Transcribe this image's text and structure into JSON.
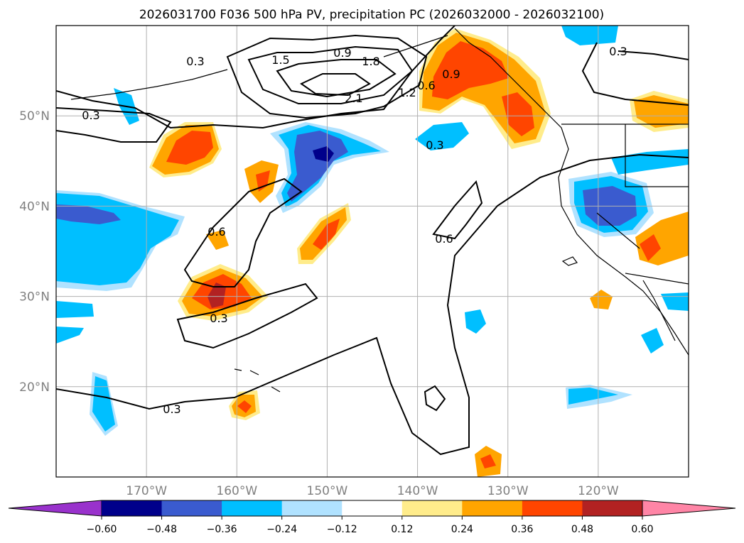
{
  "title": "2026031700 F036 500 hPa PV, precipitation PC (2026032000 - 2026032100)",
  "map": {
    "lon_range": [
      -180,
      -110
    ],
    "lat_range": [
      10,
      60
    ],
    "lat_ticks": [
      {
        "value": 20,
        "label": "20°N"
      },
      {
        "value": 30,
        "label": "30°N"
      },
      {
        "value": 40,
        "label": "40°N"
      },
      {
        "value": 50,
        "label": "50°N"
      }
    ],
    "lon_ticks": [
      {
        "value": -170,
        "label": "170°W"
      },
      {
        "value": -160,
        "label": "160°W"
      },
      {
        "value": -150,
        "label": "150°W"
      },
      {
        "value": -140,
        "label": "140°W"
      },
      {
        "value": -130,
        "label": "130°W"
      },
      {
        "value": -120,
        "label": "120°W"
      }
    ],
    "grid": true,
    "tick_label_color": "#808080",
    "pv_contour_labels": [
      "0.3",
      "0.3",
      "0.3",
      "0.3",
      "0.3",
      "0.3",
      "0.6",
      "0.6",
      "0.6",
      "0.9",
      "0.9",
      "1.2",
      "1.5",
      "1.8",
      "2.1"
    ]
  },
  "colorbar": {
    "tick_labels": [
      "−0.60",
      "−0.48",
      "−0.36",
      "−0.24",
      "−0.12",
      "0.12",
      "0.24",
      "0.36",
      "0.48",
      "0.60"
    ],
    "colors": [
      "#9932cc",
      "#00008b",
      "#3a5bcf",
      "#00bfff",
      "#b0e2ff",
      "#ffffff",
      "#ffec8b",
      "#ffa500",
      "#ff4500",
      "#b22222",
      "#ff85a6"
    ],
    "extend": "both"
  }
}
